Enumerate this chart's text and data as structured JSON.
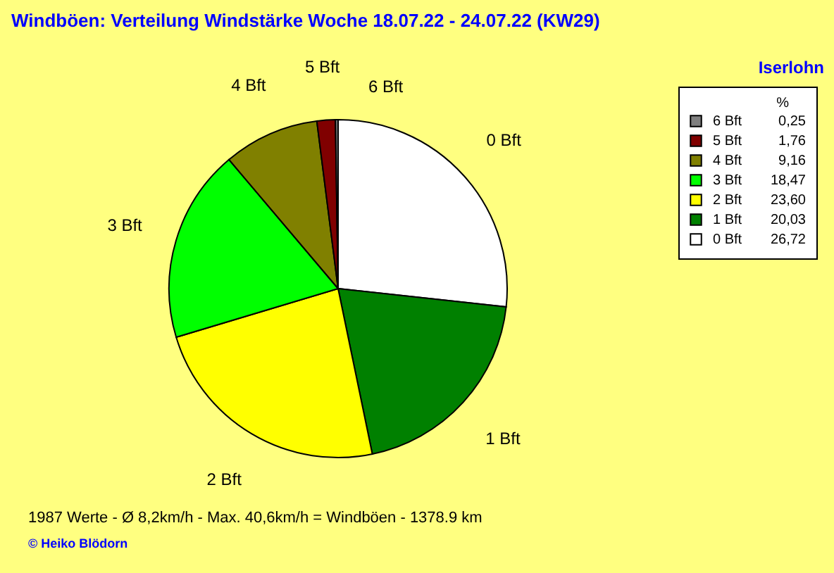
{
  "chart_data": {
    "type": "pie",
    "title": "Windböen: Verteilung Windstärke  Woche 18.07.22 - 24.07.22 (KW29)",
    "subtitle": "Iserlohn",
    "legend_title": "%",
    "legend": "top right",
    "categories": [
      "0 Bft",
      "1 Bft",
      "2 Bft",
      "3 Bft",
      "4 Bft",
      "5 Bft",
      "6 Bft"
    ],
    "values": [
      26.72,
      20.03,
      23.6,
      18.47,
      9.16,
      1.76,
      0.25
    ],
    "value_labels": [
      "26,72",
      "20,03",
      "23,60",
      "18,47",
      "9,16",
      "1,76",
      "0,25"
    ],
    "colors": [
      "#ffffff",
      "#008000",
      "#ffff00",
      "#00ff00",
      "#808000",
      "#800000",
      "#808080"
    ],
    "annotations": [
      "1987 Werte   -   Ø 8,2km/h  -  Max. 40,6km/h = Windböen   -   1378.9 km",
      "© Heiko Blödorn"
    ]
  }
}
